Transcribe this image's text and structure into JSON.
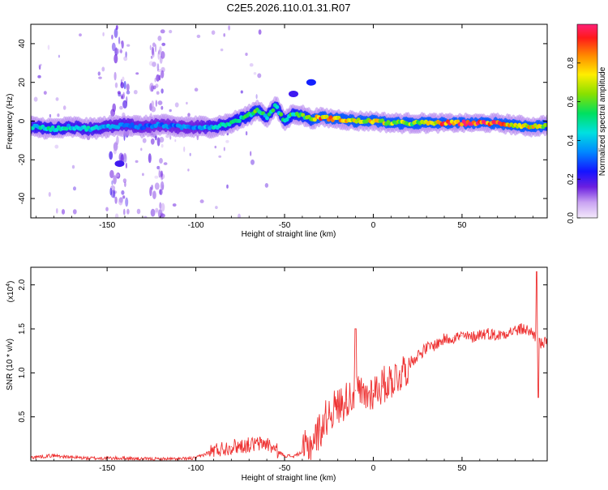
{
  "title": "C2E5.2026.110.01.31.R07",
  "chart_data": [
    {
      "type": "heatmap",
      "xlabel": "Height of straight line (km)",
      "ylabel": "Frequency (Hz)",
      "xlim": [
        -193,
        98
      ],
      "ylim": [
        -50,
        50
      ],
      "xticks": [
        -150,
        -100,
        -50,
        0,
        50
      ],
      "yticks": [
        -40,
        -20,
        0,
        20,
        40
      ],
      "ytick_labels": [
        "-40",
        "-20",
        "0",
        "20",
        "40"
      ],
      "colorbar": {
        "label": "Normalized spectral amplitude",
        "range": [
          0,
          1
        ],
        "ticks": [
          0.0,
          0.2,
          0.4,
          0.6,
          0.8
        ],
        "tick_labels": [
          "0.0",
          "0.2",
          "0.4",
          "0.6",
          "0.8"
        ]
      },
      "ridge": [
        {
          "x": -193,
          "y": -3,
          "a": 0.45
        },
        {
          "x": -180,
          "y": -4,
          "a": 0.5
        },
        {
          "x": -170,
          "y": -3,
          "a": 0.45
        },
        {
          "x": -160,
          "y": -4,
          "a": 0.45
        },
        {
          "x": -150,
          "y": -3,
          "a": 0.4
        },
        {
          "x": -140,
          "y": -2,
          "a": 0.4
        },
        {
          "x": -130,
          "y": -3,
          "a": 0.35
        },
        {
          "x": -120,
          "y": -2,
          "a": 0.35
        },
        {
          "x": -110,
          "y": -3,
          "a": 0.35
        },
        {
          "x": -100,
          "y": -3,
          "a": 0.35
        },
        {
          "x": -90,
          "y": -3,
          "a": 0.45
        },
        {
          "x": -80,
          "y": -1,
          "a": 0.5
        },
        {
          "x": -70,
          "y": 3,
          "a": 0.55
        },
        {
          "x": -65,
          "y": 6,
          "a": 0.6
        },
        {
          "x": -60,
          "y": 2,
          "a": 0.5
        },
        {
          "x": -55,
          "y": 8,
          "a": 0.55
        },
        {
          "x": -50,
          "y": 0,
          "a": 0.55
        },
        {
          "x": -45,
          "y": 4,
          "a": 0.55
        },
        {
          "x": -40,
          "y": 3,
          "a": 0.6
        },
        {
          "x": -35,
          "y": 1,
          "a": 0.6
        },
        {
          "x": -30,
          "y": 2,
          "a": 0.9
        },
        {
          "x": -20,
          "y": 1,
          "a": 0.8
        },
        {
          "x": -10,
          "y": 0,
          "a": 0.75
        },
        {
          "x": 0,
          "y": 0,
          "a": 0.8
        },
        {
          "x": 10,
          "y": -1,
          "a": 0.75
        },
        {
          "x": 20,
          "y": -1,
          "a": 0.65
        },
        {
          "x": 30,
          "y": -1,
          "a": 0.7
        },
        {
          "x": 40,
          "y": -1,
          "a": 0.95
        },
        {
          "x": 50,
          "y": -1,
          "a": 1.0
        },
        {
          "x": 60,
          "y": -1,
          "a": 1.0
        },
        {
          "x": 70,
          "y": -1,
          "a": 0.95
        },
        {
          "x": 80,
          "y": -2,
          "a": 0.7
        },
        {
          "x": 90,
          "y": -3,
          "a": 0.8
        },
        {
          "x": 98,
          "y": -2,
          "a": 0.6
        }
      ],
      "speckle_bands": [
        {
          "x_from": -148,
          "x_to": -138,
          "a": 0.15
        },
        {
          "x_from": -126,
          "x_to": -118,
          "a": 0.12
        }
      ],
      "blobs": [
        {
          "x": -35,
          "y": 20,
          "a": 0.25
        },
        {
          "x": -45,
          "y": 14,
          "a": 0.2
        },
        {
          "x": -143,
          "y": -22,
          "a": 0.2
        }
      ]
    },
    {
      "type": "line",
      "xlabel": "Height of straight line (km)",
      "ylabel": "SNR (10 * v/v)",
      "y_multiplier": "(x10",
      "y_multiplier_exp": "4",
      "y_multiplier_close": ")",
      "xlim": [
        -193,
        98
      ],
      "ylim": [
        0,
        2.2
      ],
      "xticks": [
        -150,
        -100,
        -50,
        0,
        50
      ],
      "yticks": [
        0.5,
        1.0,
        1.5,
        2.0
      ],
      "ytick_labels": [
        "0.5",
        "1.0",
        "1.5",
        "2.0"
      ],
      "series": [
        {
          "name": "SNR",
          "color": "#ee3333",
          "x": [
            -193,
            -180,
            -170,
            -160,
            -150,
            -140,
            -130,
            -120,
            -110,
            -100,
            -90,
            -80,
            -70,
            -60,
            -55,
            -50,
            -45,
            -40,
            -35,
            -30,
            -25,
            -20,
            -15,
            -10,
            -5,
            0,
            5,
            10,
            15,
            20,
            25,
            30,
            35,
            40,
            45,
            50,
            55,
            60,
            65,
            70,
            75,
            80,
            85,
            90,
            95,
            98
          ],
          "y": [
            0.04,
            0.06,
            0.04,
            0.03,
            0.03,
            0.03,
            0.02,
            0.02,
            0.02,
            0.03,
            0.12,
            0.16,
            0.18,
            0.2,
            0.12,
            0.06,
            0.05,
            0.1,
            0.2,
            0.35,
            0.55,
            0.62,
            0.7,
            0.8,
            0.72,
            0.8,
            0.85,
            0.92,
            0.98,
            1.1,
            1.2,
            1.28,
            1.32,
            1.38,
            1.4,
            1.42,
            1.4,
            1.44,
            1.45,
            1.42,
            1.46,
            1.48,
            1.5,
            1.45,
            1.32,
            1.35
          ]
        }
      ]
    }
  ]
}
